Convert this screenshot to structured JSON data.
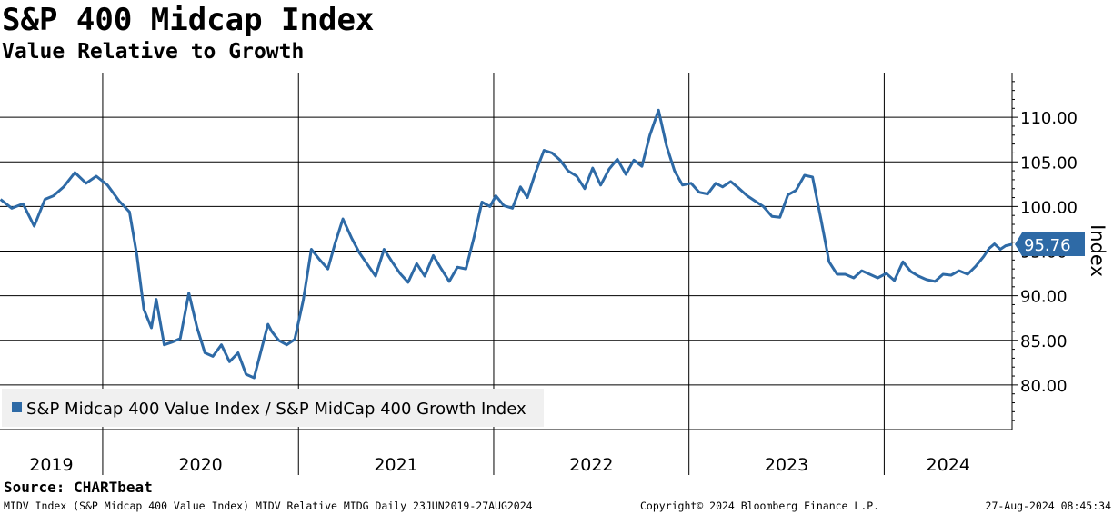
{
  "header": {
    "title": "S&P 400 Midcap Index",
    "subtitle": "Value Relative to Growth"
  },
  "footer": {
    "source": "Source: CHARTbeat",
    "description": "MIDV Index (S&P Midcap 400 Value Index) MIDV Relative MIDG  Daily 23JUN2019-27AUG2024",
    "copyright": "Copyright© 2024 Bloomberg Finance L.P.",
    "timestamp": "27-Aug-2024 08:45:34"
  },
  "colors": {
    "series": "#2e6aa6",
    "gridline": "#000000",
    "legend_bg": "#f0f0f0",
    "last_value_box": "#2e6aa6"
  },
  "chart_data": {
    "type": "line",
    "ylabel": "Index",
    "ylim": [
      75,
      115
    ],
    "yticks": [
      80,
      85,
      90,
      95,
      100,
      105,
      110
    ],
    "ytick_labels": [
      "80.00",
      "85.00",
      "90.00",
      "95.00",
      "100.00",
      "105.00",
      "110.00"
    ],
    "xlim": [
      "2019-06-23",
      "2024-08-27"
    ],
    "x_categories": [
      "2019",
      "2020",
      "2021",
      "2022",
      "2023",
      "2024"
    ],
    "x_category_bounds": [
      "2020-01-01",
      "2021-01-01",
      "2022-01-01",
      "2023-01-01",
      "2024-01-01"
    ],
    "grid": true,
    "legend_position": "bottom-left",
    "last_value": 95.76,
    "last_value_label": "95.76",
    "series": [
      {
        "name": "S&P Midcap 400 Value Index / S&P MidCap 400 Growth Index",
        "x": [
          "2019-06-24",
          "2019-07-15",
          "2019-08-05",
          "2019-08-26",
          "2019-09-15",
          "2019-10-01",
          "2019-10-20",
          "2019-11-10",
          "2019-12-01",
          "2019-12-20",
          "2020-01-10",
          "2020-02-01",
          "2020-02-20",
          "2020-03-05",
          "2020-03-18",
          "2020-04-01",
          "2020-04-10",
          "2020-04-25",
          "2020-05-10",
          "2020-05-25",
          "2020-06-10",
          "2020-06-25",
          "2020-07-10",
          "2020-07-25",
          "2020-08-10",
          "2020-08-25",
          "2020-09-10",
          "2020-09-25",
          "2020-10-10",
          "2020-10-25",
          "2020-11-05",
          "2020-11-12",
          "2020-11-25",
          "2020-12-10",
          "2020-12-25",
          "2021-01-10",
          "2021-01-25",
          "2021-02-10",
          "2021-02-25",
          "2021-03-10",
          "2021-03-25",
          "2021-04-10",
          "2021-04-25",
          "2021-05-10",
          "2021-05-25",
          "2021-06-10",
          "2021-06-25",
          "2021-07-10",
          "2021-07-25",
          "2021-08-10",
          "2021-08-25",
          "2021-09-10",
          "2021-09-25",
          "2021-10-10",
          "2021-10-25",
          "2021-11-10",
          "2021-11-25",
          "2021-12-10",
          "2021-12-25",
          "2022-01-05",
          "2022-01-20",
          "2022-02-05",
          "2022-02-20",
          "2022-03-05",
          "2022-03-20",
          "2022-04-05",
          "2022-04-20",
          "2022-05-05",
          "2022-05-20",
          "2022-06-05",
          "2022-06-20",
          "2022-07-05",
          "2022-07-20",
          "2022-08-05",
          "2022-08-20",
          "2022-09-05",
          "2022-09-20",
          "2022-10-05",
          "2022-10-20",
          "2022-11-05",
          "2022-11-20",
          "2022-12-05",
          "2022-12-20",
          "2023-01-05",
          "2023-01-20",
          "2023-02-05",
          "2023-02-20",
          "2023-03-05",
          "2023-03-20",
          "2023-04-05",
          "2023-04-20",
          "2023-05-05",
          "2023-05-20",
          "2023-06-05",
          "2023-06-20",
          "2023-07-05",
          "2023-07-20",
          "2023-08-05",
          "2023-08-20",
          "2023-09-05",
          "2023-09-20",
          "2023-10-05",
          "2023-10-20",
          "2023-11-05",
          "2023-11-20",
          "2023-12-05",
          "2023-12-20",
          "2024-01-05",
          "2024-01-20",
          "2024-02-05",
          "2024-02-20",
          "2024-03-05",
          "2024-03-20",
          "2024-04-05",
          "2024-04-20",
          "2024-05-05",
          "2024-05-20",
          "2024-06-05",
          "2024-06-20",
          "2024-07-05",
          "2024-07-15",
          "2024-07-25",
          "2024-08-05",
          "2024-08-15",
          "2024-08-27"
        ],
        "values": [
          100.8,
          99.8,
          100.3,
          97.8,
          100.8,
          101.2,
          102.2,
          103.8,
          102.6,
          103.4,
          102.4,
          100.6,
          99.4,
          94.5,
          88.5,
          86.4,
          89.6,
          84.5,
          84.8,
          85.2,
          90.3,
          86.5,
          83.6,
          83.2,
          84.5,
          82.6,
          83.6,
          81.2,
          80.8,
          84.3,
          86.8,
          86.0,
          85.0,
          84.5,
          85.1,
          89.5,
          95.2,
          94.0,
          93.0,
          95.8,
          98.6,
          96.5,
          94.8,
          93.5,
          92.2,
          95.2,
          93.8,
          92.5,
          91.5,
          93.6,
          92.2,
          94.5,
          93.0,
          91.6,
          93.2,
          93.0,
          96.5,
          100.5,
          100.0,
          101.2,
          100.1,
          99.8,
          102.2,
          101.0,
          103.8,
          106.3,
          106.0,
          105.2,
          104.0,
          103.4,
          102.0,
          104.3,
          102.4,
          104.2,
          105.3,
          103.6,
          105.2,
          104.5,
          108.0,
          110.8,
          106.8,
          104.0,
          102.4,
          102.6,
          101.6,
          101.4,
          102.6,
          102.2,
          102.8,
          102.0,
          101.2,
          100.6,
          100.0,
          98.9,
          98.8,
          101.3,
          101.8,
          103.5,
          103.3,
          98.5,
          93.8,
          92.4,
          92.4,
          92.0,
          92.8,
          92.4,
          92.0,
          92.5,
          91.7,
          93.8,
          92.7,
          92.2,
          91.8,
          91.6,
          92.4,
          92.3,
          92.8,
          92.4,
          93.3,
          94.4,
          95.3,
          95.8,
          95.2,
          95.6,
          95.76
        ]
      }
    ]
  }
}
